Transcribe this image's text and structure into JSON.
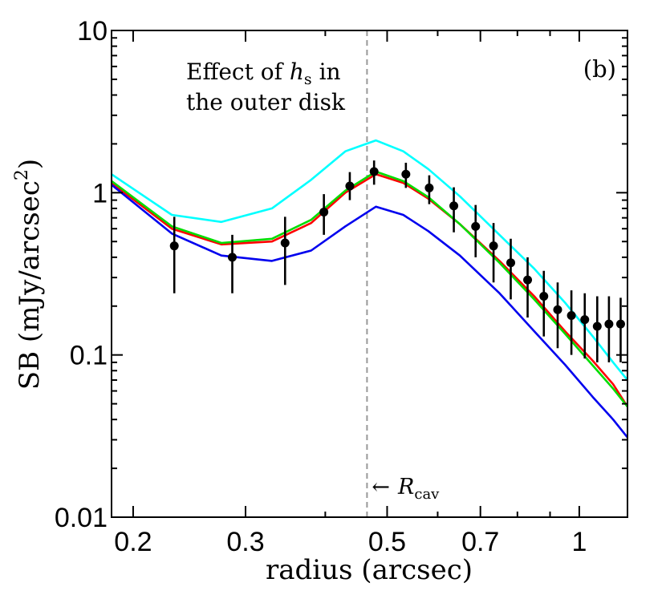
{
  "chart_data": {
    "type": "line",
    "panel_label": "(b)",
    "xlabel": "radius (arcsec)",
    "ylabel": "SB (mJy/arcsec",
    "ylabel_sup": "2",
    "ylabel_close": ")",
    "xscale": "log",
    "yscale": "log",
    "xlim": [
      0.185,
      1.19
    ],
    "ylim": [
      0.01,
      10
    ],
    "x_ticks": [
      {
        "value": 0.2,
        "label": "0.2"
      },
      {
        "value": 0.3,
        "label": "0.3"
      },
      {
        "value": 0.5,
        "label": "0.5"
      },
      {
        "value": 0.7,
        "label": "0.7"
      },
      {
        "value": 1.0,
        "label": "1"
      }
    ],
    "x_minor_ticks": [
      0.4,
      0.6,
      0.8,
      0.9
    ],
    "y_ticks": [
      {
        "value": 0.01,
        "label": "0.01"
      },
      {
        "value": 0.1,
        "label": "0.1"
      },
      {
        "value": 1,
        "label": "1"
      },
      {
        "value": 10,
        "label": "10"
      }
    ],
    "annotation": {
      "line1_pre": "Effect of ",
      "line1_var": "h",
      "line1_sub": "s",
      "line1_post": " in",
      "line2": "the outer disk"
    },
    "reference_line": {
      "x": 0.465,
      "arrow": "←",
      "label_var": "R",
      "label_sub": "cav",
      "color": "#999999"
    },
    "series": [
      {
        "name": "cyan",
        "color": "#00ffff",
        "x": [
          0.185,
          0.23,
          0.275,
          0.33,
          0.38,
          0.43,
          0.48,
          0.53,
          0.58,
          0.65,
          0.75,
          0.85,
          0.95,
          1.05,
          1.13,
          1.19
        ],
        "y": [
          1.3,
          0.73,
          0.66,
          0.8,
          1.2,
          1.8,
          2.1,
          1.8,
          1.4,
          0.95,
          0.55,
          0.34,
          0.21,
          0.13,
          0.09,
          0.07
        ]
      },
      {
        "name": "red",
        "color": "#ff0000",
        "x": [
          0.185,
          0.23,
          0.275,
          0.33,
          0.38,
          0.43,
          0.48,
          0.53,
          0.58,
          0.65,
          0.75,
          0.85,
          0.95,
          1.05,
          1.13,
          1.19
        ],
        "y": [
          1.15,
          0.6,
          0.48,
          0.5,
          0.65,
          1.0,
          1.3,
          1.15,
          0.92,
          0.64,
          0.38,
          0.23,
          0.14,
          0.092,
          0.066,
          0.048
        ]
      },
      {
        "name": "green",
        "color": "#00dd00",
        "x": [
          0.185,
          0.23,
          0.275,
          0.33,
          0.38,
          0.43,
          0.48,
          0.53,
          0.58,
          0.65,
          0.75,
          0.85,
          0.95,
          1.05,
          1.13,
          1.19
        ],
        "y": [
          1.18,
          0.62,
          0.49,
          0.52,
          0.68,
          1.03,
          1.35,
          1.18,
          0.94,
          0.64,
          0.37,
          0.22,
          0.135,
          0.086,
          0.062,
          0.048
        ]
      },
      {
        "name": "blue",
        "color": "#0000ee",
        "x": [
          0.185,
          0.23,
          0.275,
          0.33,
          0.38,
          0.43,
          0.48,
          0.53,
          0.58,
          0.65,
          0.75,
          0.85,
          0.95,
          1.05,
          1.13,
          1.19
        ],
        "y": [
          1.12,
          0.56,
          0.41,
          0.38,
          0.44,
          0.62,
          0.82,
          0.73,
          0.58,
          0.41,
          0.24,
          0.14,
          0.087,
          0.055,
          0.04,
          0.031
        ]
      }
    ],
    "observed": {
      "name": "data",
      "color": "#000000",
      "points": [
        {
          "x": 0.232,
          "y": 0.47,
          "lo": 0.24,
          "hi": 0.71
        },
        {
          "x": 0.286,
          "y": 0.4,
          "lo": 0.24,
          "hi": 0.55
        },
        {
          "x": 0.346,
          "y": 0.49,
          "lo": 0.27,
          "hi": 0.71
        },
        {
          "x": 0.398,
          "y": 0.76,
          "lo": 0.55,
          "hi": 0.98
        },
        {
          "x": 0.437,
          "y": 1.1,
          "lo": 0.9,
          "hi": 1.34
        },
        {
          "x": 0.477,
          "y": 1.35,
          "lo": 1.12,
          "hi": 1.58
        },
        {
          "x": 0.535,
          "y": 1.3,
          "lo": 1.07,
          "hi": 1.53
        },
        {
          "x": 0.582,
          "y": 1.07,
          "lo": 0.85,
          "hi": 1.28
        },
        {
          "x": 0.636,
          "y": 0.83,
          "lo": 0.57,
          "hi": 1.08
        },
        {
          "x": 0.688,
          "y": 0.62,
          "lo": 0.4,
          "hi": 0.84
        },
        {
          "x": 0.734,
          "y": 0.47,
          "lo": 0.28,
          "hi": 0.65
        },
        {
          "x": 0.781,
          "y": 0.37,
          "lo": 0.22,
          "hi": 0.52
        },
        {
          "x": 0.83,
          "y": 0.29,
          "lo": 0.17,
          "hi": 0.4
        },
        {
          "x": 0.88,
          "y": 0.23,
          "lo": 0.13,
          "hi": 0.33
        },
        {
          "x": 0.925,
          "y": 0.19,
          "lo": 0.11,
          "hi": 0.28
        },
        {
          "x": 0.972,
          "y": 0.175,
          "lo": 0.1,
          "hi": 0.25
        },
        {
          "x": 1.02,
          "y": 0.165,
          "lo": 0.095,
          "hi": 0.24
        },
        {
          "x": 1.067,
          "y": 0.15,
          "lo": 0.09,
          "hi": 0.23
        },
        {
          "x": 1.113,
          "y": 0.155,
          "lo": 0.09,
          "hi": 0.23
        },
        {
          "x": 1.161,
          "y": 0.155,
          "lo": 0.09,
          "hi": 0.225
        }
      ]
    }
  }
}
